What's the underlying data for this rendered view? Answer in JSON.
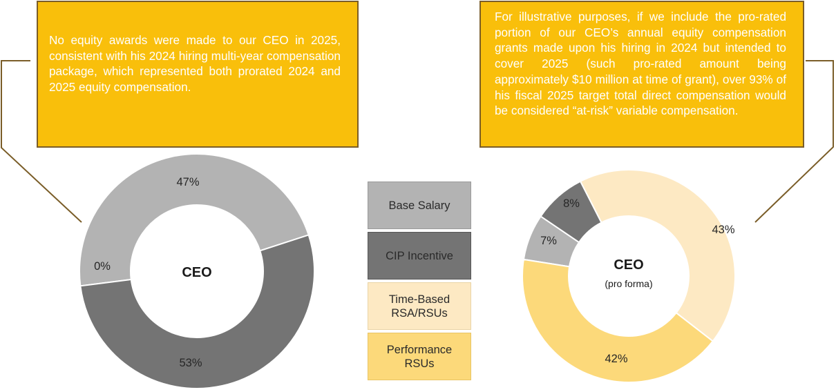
{
  "callouts": {
    "left": "No equity awards were made to our CEO in 2025, consistent with his 2024 hiring multi-year compensation package, which represented both prorated 2024 and 2025 equity compensation.",
    "right": "For illustrative purposes, if we include the pro-rated portion of our CEO’s annual equity compensation grants made upon his hiring in 2024 but intended to cover 2025 (such pro-rated amount being approximately $10 million at time of grant), over 93% of his fiscal 2025 target total direct compensation would be considered “at-risk” variable compensation."
  },
  "legend": [
    {
      "label": "Base Salary",
      "color": "#b3b3b3"
    },
    {
      "label": "CIP Incentive",
      "color": "#747474"
    },
    {
      "label": "Time-Based RSA/RSUs",
      "color": "#fde9c3"
    },
    {
      "label": "Performance RSUs",
      "color": "#fcd97a"
    }
  ],
  "chart_data": [
    {
      "type": "pie",
      "title": "CEO",
      "subtitle": "",
      "labels": [
        "Base Salary",
        "CIP Incentive",
        "Time-Based RSA/RSUs",
        "Performance RSUs"
      ],
      "values": [
        47,
        53,
        0,
        0
      ],
      "data_labels": [
        "47%",
        "53%",
        "0%",
        ""
      ],
      "colors": [
        "#b3b3b3",
        "#747474",
        "#fde9c3",
        "#fcd97a"
      ]
    },
    {
      "type": "pie",
      "title": "CEO",
      "subtitle": "(pro forma)",
      "labels": [
        "Base Salary",
        "CIP Incentive",
        "Time-Based RSA/RSUs",
        "Performance RSUs"
      ],
      "values": [
        7,
        8,
        43,
        42
      ],
      "data_labels": [
        "7%",
        "8%",
        "43%",
        "42%"
      ],
      "colors": [
        "#b3b3b3",
        "#747474",
        "#fde9c3",
        "#fcd97a"
      ]
    }
  ]
}
